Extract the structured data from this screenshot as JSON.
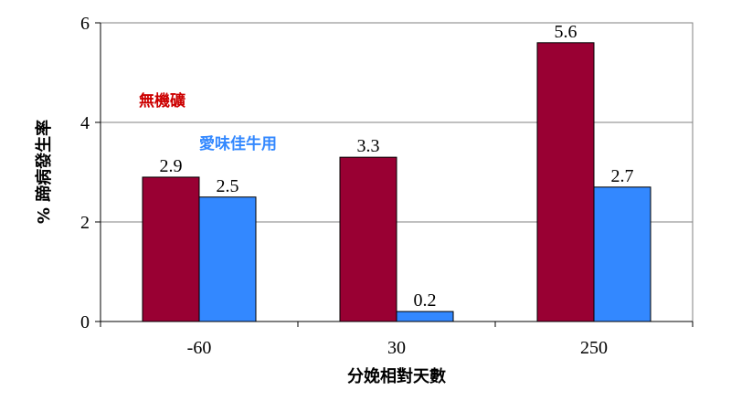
{
  "chart_data": {
    "type": "bar",
    "categories": [
      "-60",
      "30",
      "250"
    ],
    "series": [
      {
        "name": "無機礦",
        "values": [
          2.9,
          3.3,
          5.6
        ],
        "color": "#990033"
      },
      {
        "name": "愛味佳牛用",
        "values": [
          2.5,
          0.2,
          2.7
        ],
        "color": "#3388ff"
      }
    ],
    "value_labels": [
      [
        "2.9",
        "3.3",
        "5.6"
      ],
      [
        "2.5",
        "0.2",
        "2.7"
      ]
    ],
    "xlabel": "分娩相對天數",
    "ylabel": "% 蹄病發生率",
    "ylim": [
      0,
      6
    ],
    "yticks": [
      "0",
      "2",
      "4",
      "6"
    ],
    "grid": true,
    "legend_placement": "upper-left inside plot"
  }
}
